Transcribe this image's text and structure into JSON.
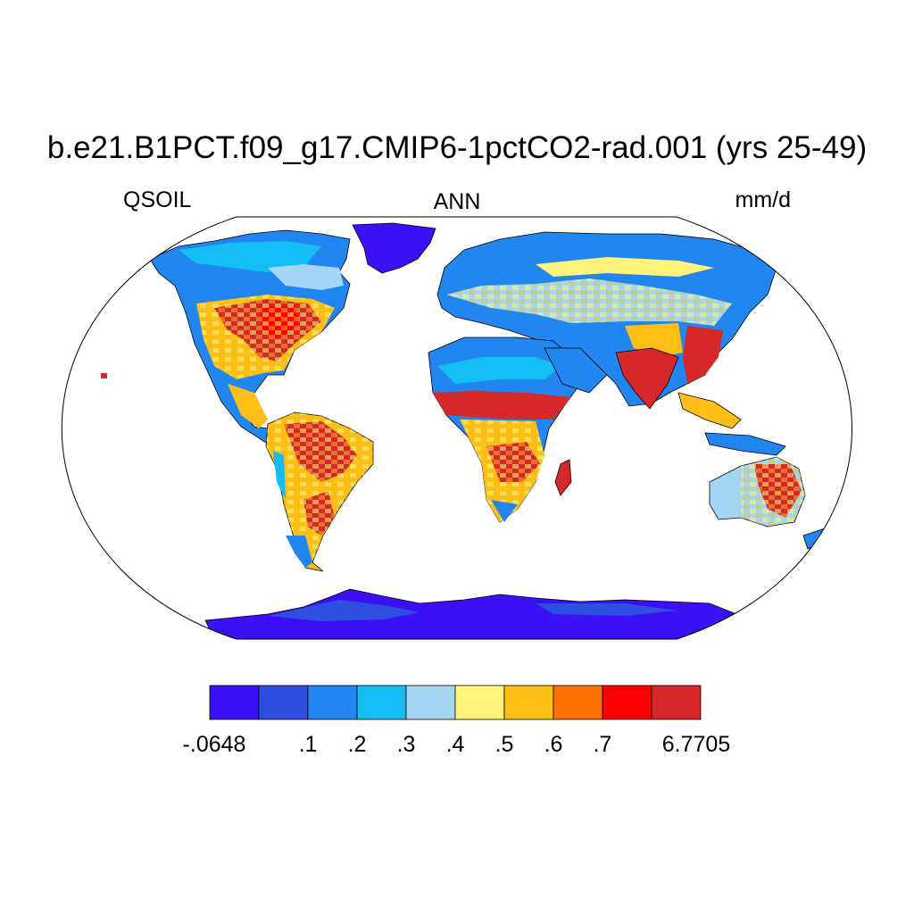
{
  "title": "b.e21.B1PCT.f09_g17.CMIP6-1pctCO2-rad.001 (yrs 25-49)",
  "subtitle_left": "QSOIL",
  "subtitle_center": "ANN",
  "subtitle_right": "mm/d",
  "legend": {
    "colors": [
      "#3b10f5",
      "#2e4fe0",
      "#2286f0",
      "#15bdf5",
      "#a3d6f2",
      "#fff37a",
      "#ffbe16",
      "#ff7000",
      "#ff0000",
      "#d62828"
    ],
    "labels": [
      "-.0648",
      ".1",
      ".2",
      ".3",
      ".4",
      ".5",
      ".6",
      ".7",
      "6.7705"
    ],
    "label_positions": [
      0,
      2,
      3,
      4,
      5,
      6,
      7,
      8,
      10
    ]
  },
  "map": {
    "projection": "Robinson",
    "ocean_color": "#ffffff",
    "coastline_color": "#000000"
  }
}
